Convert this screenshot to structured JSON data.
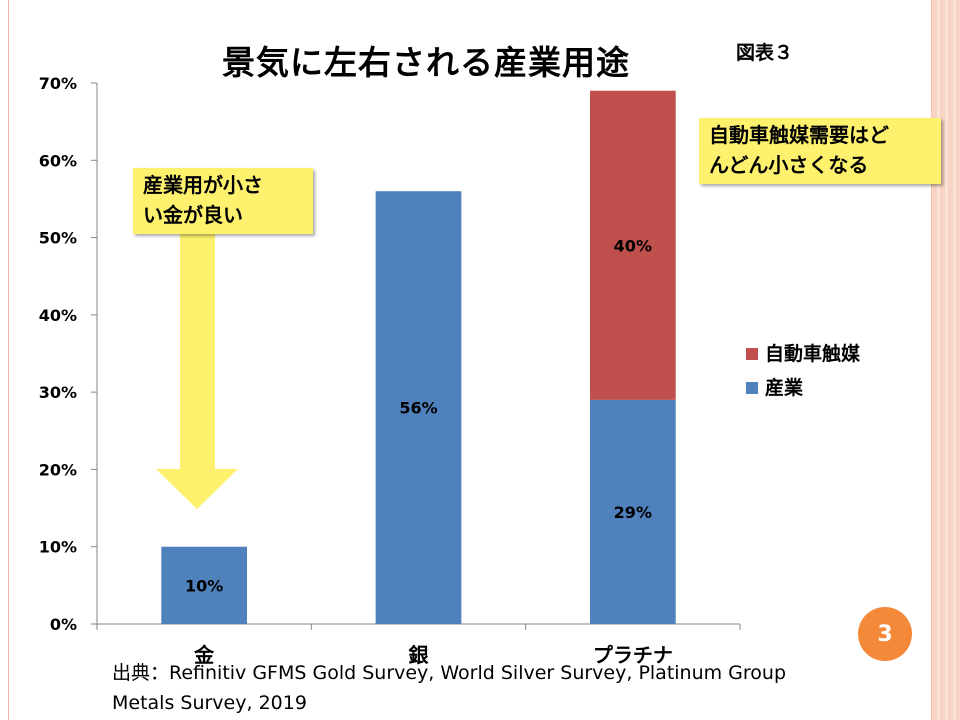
{
  "slide": {
    "title": "景気に左右される産業用途",
    "figure_label": "図表３",
    "callout_left": [
      "産業用が小さ",
      "い金が良い"
    ],
    "callout_right": [
      "自動車触媒需要はど",
      "んどん小さくなる"
    ],
    "page_number": "3",
    "source_lines": [
      "出典：Refinitiv GFMS Gold Survey, World Silver Survey, Platinum Group",
      "Metals Survey, 2019"
    ]
  },
  "colors": {
    "industrial": "#4f81bd",
    "auto_catalyst": "#c0504d",
    "callout": "#fdf16e",
    "arrow": "#fdf16e",
    "page_badge": "#f5893a"
  },
  "chart_data": {
    "type": "bar",
    "stacked": true,
    "title": "景気に左右される産業用途",
    "categories": [
      "金",
      "銀",
      "プラチナ"
    ],
    "series": [
      {
        "name": "産業",
        "values": [
          10,
          56,
          29
        ],
        "labels": [
          "10%",
          "56%",
          "29%"
        ],
        "color": "#4f81bd"
      },
      {
        "name": "自動車触媒",
        "values": [
          0,
          0,
          40
        ],
        "labels": [
          "",
          "",
          "40%"
        ],
        "color": "#c0504d"
      }
    ],
    "ylim": [
      0,
      70
    ],
    "yticks": [
      0,
      10,
      20,
      30,
      40,
      50,
      60,
      70
    ],
    "ytick_labels": [
      "0%",
      "10%",
      "20%",
      "30%",
      "40%",
      "50%",
      "60%",
      "70%"
    ],
    "legend": [
      "自動車触媒",
      "産業"
    ],
    "legend_position": "right",
    "xlabel": "",
    "ylabel": ""
  }
}
